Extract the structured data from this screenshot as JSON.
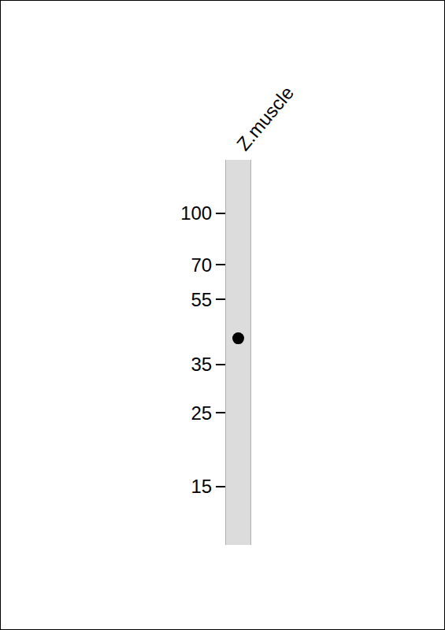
{
  "chart_data": {
    "type": "blot",
    "categories": [
      "Z.muscle"
    ],
    "values": [
      42
    ],
    "color": "#000000",
    "ylim": [
      10,
      145
    ],
    "yticks": [
      15,
      25,
      35,
      55,
      70,
      100
    ],
    "log": "y"
  }
}
